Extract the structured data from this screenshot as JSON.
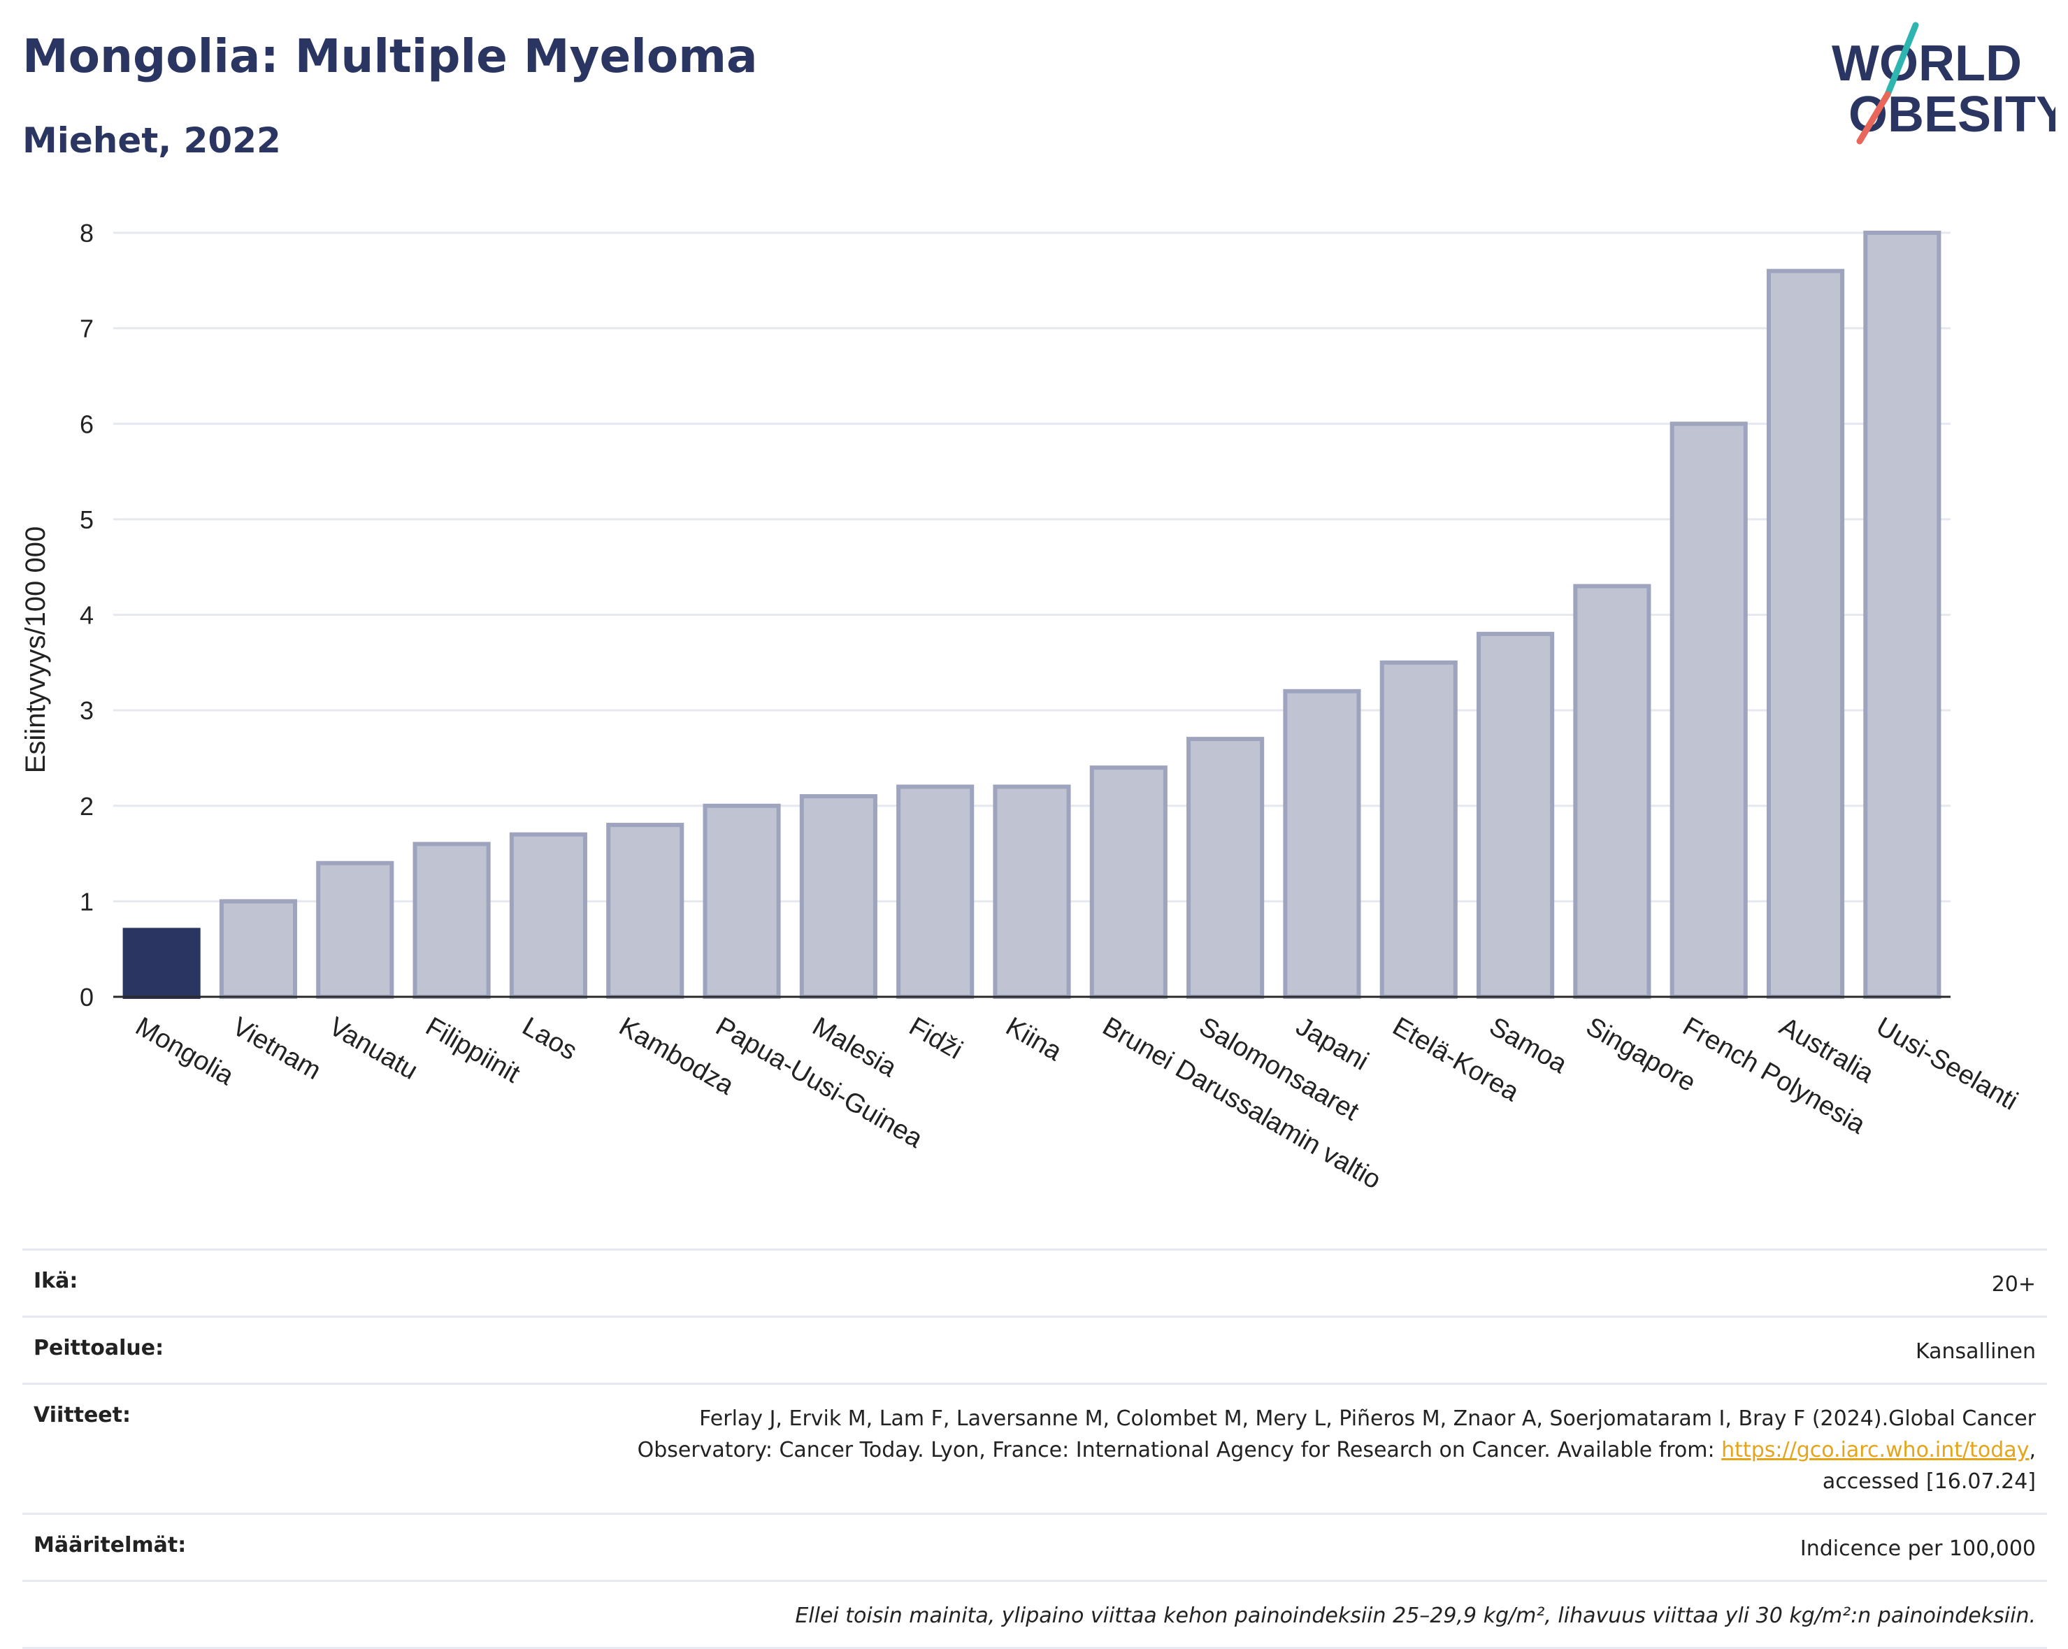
{
  "header": {
    "title": "Mongolia: Multiple Myeloma",
    "subtitle": "Miehet, 2022"
  },
  "logo": {
    "line1": "WORLD",
    "line2": "OBESITY",
    "slash_colors": [
      "#2fb5b0",
      "#e8675a"
    ]
  },
  "colors": {
    "highlight_bar": "#2a3561",
    "other_bar_fill": "#bfc3d2",
    "other_bar_stroke": "#9ea4bd",
    "axis_text": "#222222",
    "grid": "#e6e8ef"
  },
  "chart_data": {
    "type": "bar",
    "ylabel": "Esiintyvyys/100 000",
    "xlabel": "",
    "ylim": [
      0,
      8
    ],
    "yticks": [
      0,
      1,
      2,
      3,
      4,
      5,
      6,
      7,
      8
    ],
    "grid": true,
    "categories": [
      "Mongolia",
      "Vietnam",
      "Vanuatu",
      "Filippiinit",
      "Laos",
      "Kambodza",
      "Papua-Uusi-Guinea",
      "Malesia",
      "Fidži",
      "Kiina",
      "Brunei Darussalamin valtio",
      "Salomonsaaret",
      "Japani",
      "Etelä-Korea",
      "Samoa",
      "Singapore",
      "French Polynesia",
      "Australia",
      "Uusi-Seelanti"
    ],
    "values": [
      0.7,
      1.0,
      1.4,
      1.6,
      1.7,
      1.8,
      2.0,
      2.1,
      2.2,
      2.2,
      2.4,
      2.7,
      3.2,
      3.5,
      3.8,
      4.3,
      6.0,
      7.6,
      8.0
    ],
    "highlight": "Mongolia"
  },
  "meta": {
    "age_label": "Ikä:",
    "age_value": "20+",
    "coverage_label": "Peittoalue:",
    "coverage_value": "Kansallinen",
    "refs_label": "Viitteet:",
    "refs_line1": "Ferlay J, Ervik M, Lam F, Laversanne M, Colombet M, Mery L, Piñeros M, Znaor A, Soerjomataram I, Bray F (2024).Global Cancer",
    "refs_line2_pre": "Observatory: Cancer Today. Lyon, France: International Agency for Research on Cancer. Available from: ",
    "refs_link": "https://gco.iarc.who.int/today",
    "refs_line2_post": ",",
    "refs_line3": "accessed [16.07.24]",
    "defs_label": "Määritelmät:",
    "defs_value": "Indicence per 100,000",
    "note": "Ellei toisin mainita, ylipaino viittaa kehon painoindeksiin 25–29,9 kg/m², lihavuus viittaa yli 30 kg/m²:n painoindeksiin."
  }
}
